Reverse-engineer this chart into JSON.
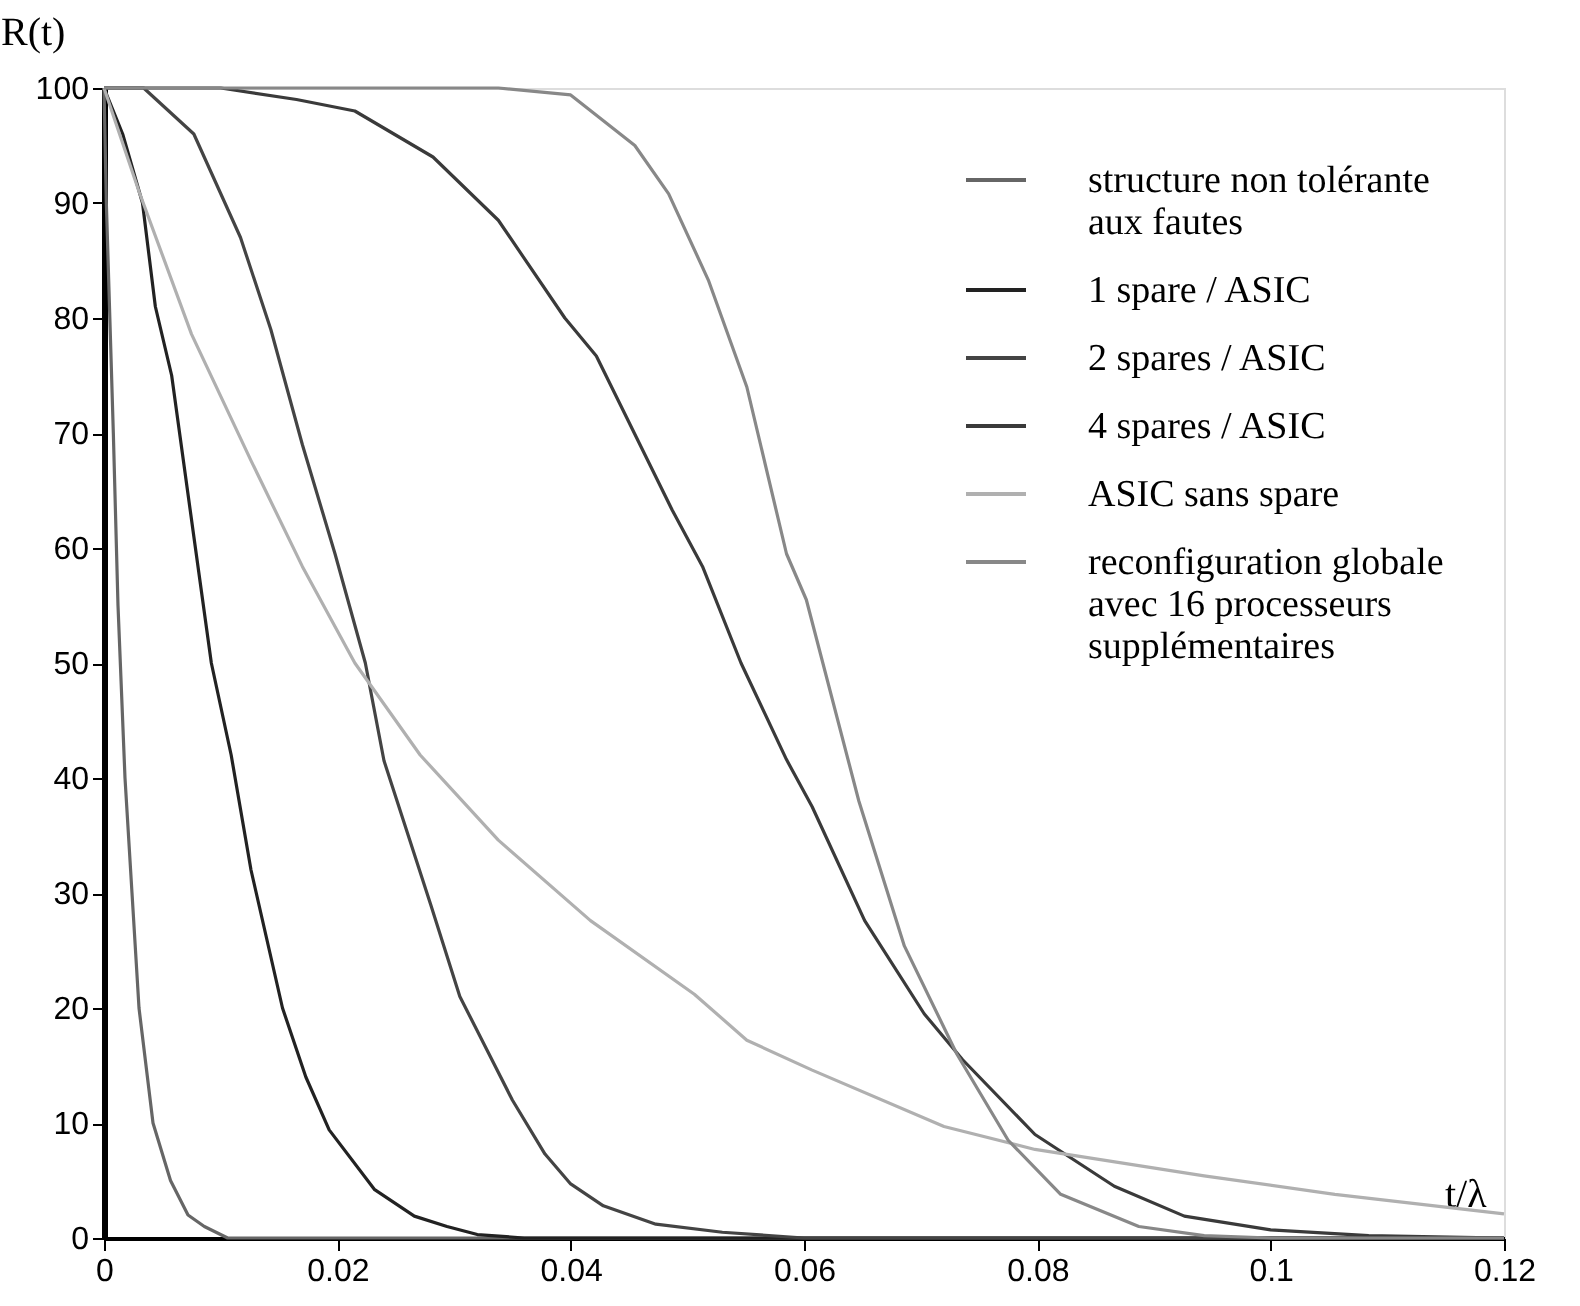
{
  "chart_data": {
    "type": "line",
    "xlabel": "t/λ",
    "ylabel": "R(t)",
    "xlim": [
      0,
      0.12
    ],
    "xticks": [
      0,
      0.02,
      0.04,
      0.06,
      0.08,
      0.1,
      0.12
    ],
    "ylim": [
      0,
      100
    ],
    "yticks": [
      0,
      10,
      20,
      30,
      40,
      50,
      60,
      70,
      80,
      90,
      100
    ],
    "grid": false,
    "legend": "top right",
    "marker": "none",
    "line_style": "solid",
    "series": [
      {
        "name": "structure non tolérante aux fautes",
        "color": "#666666",
        "x": [
          0,
          0.0002,
          0.0008,
          0.0012,
          0.0018,
          0.0024,
          0.003,
          0.0042,
          0.0057,
          0.0072,
          0.0086,
          0.0106,
          0.12
        ],
        "values": [
          100,
          90,
          70,
          55,
          40,
          30,
          20,
          10,
          5,
          2,
          1,
          0,
          0
        ]
      },
      {
        "name": "1 spare / ASIC",
        "color": "#222222",
        "x": [
          0,
          0.0016,
          0.0033,
          0.0044,
          0.0058,
          0.0077,
          0.0092,
          0.0109,
          0.0126,
          0.0153,
          0.0173,
          0.0193,
          0.0232,
          0.0266,
          0.0294,
          0.032,
          0.036,
          0.12
        ],
        "values": [
          100,
          96,
          90,
          81,
          75,
          61,
          50,
          42,
          32,
          20,
          14,
          9.4,
          4.2,
          1.9,
          1,
          0.3,
          0,
          0
        ]
      },
      {
        "name": "2 spares  / ASIC",
        "color": "#444444",
        "x": [
          0,
          0.0034,
          0.0077,
          0.0117,
          0.0143,
          0.017,
          0.0198,
          0.0224,
          0.024,
          0.028,
          0.0305,
          0.035,
          0.0378,
          0.04,
          0.0428,
          0.0473,
          0.053,
          0.06,
          0.12
        ],
        "values": [
          100,
          100,
          96,
          87,
          79,
          69,
          59.5,
          50,
          41.5,
          29,
          21,
          12,
          7.3,
          4.7,
          2.8,
          1.2,
          0.5,
          0,
          0
        ]
      },
      {
        "name": "4 spares / ASIC",
        "color": "#3a3a3a",
        "x": [
          0,
          0.01,
          0.0165,
          0.0215,
          0.0282,
          0.0338,
          0.0395,
          0.0422,
          0.0487,
          0.0513,
          0.0546,
          0.0585,
          0.0607,
          0.0652,
          0.0703,
          0.0736,
          0.0798,
          0.0866,
          0.0926,
          0.1,
          0.1084,
          0.12
        ],
        "values": [
          100,
          100,
          99,
          98,
          94,
          88.5,
          80,
          76.7,
          63.3,
          58.4,
          50,
          41.6,
          37.5,
          27.6,
          19.5,
          15.5,
          9,
          4.5,
          1.9,
          0.7,
          0.2,
          0
        ]
      },
      {
        "name": "ASIC sans spare",
        "color": "#b0b0b0",
        "x": [
          0,
          0.003,
          0.0075,
          0.0126,
          0.017,
          0.0215,
          0.0271,
          0.0338,
          0.0417,
          0.0506,
          0.0551,
          0.0607,
          0.072,
          0.0798,
          0.0943,
          0.1055,
          0.12
        ],
        "values": [
          100,
          91,
          78.6,
          67.6,
          58.4,
          50,
          42,
          34.6,
          27.6,
          21.2,
          17.2,
          14.6,
          9.7,
          7.7,
          5.4,
          3.8,
          2.1
        ]
      },
      {
        "name": "reconfiguration globale avec 16 processeurs supplémentaires",
        "color": "#888888",
        "x": [
          0,
          0.0338,
          0.04,
          0.0455,
          0.0484,
          0.0518,
          0.0551,
          0.0585,
          0.0602,
          0.0647,
          0.0686,
          0.0731,
          0.0775,
          0.082,
          0.0887,
          0.0943,
          0.1,
          0.12
        ],
        "values": [
          100,
          100,
          99.4,
          95,
          90.8,
          83.3,
          74,
          59.5,
          55.5,
          38,
          25.4,
          16,
          8.5,
          3.8,
          1,
          0.2,
          0,
          0
        ]
      }
    ]
  }
}
